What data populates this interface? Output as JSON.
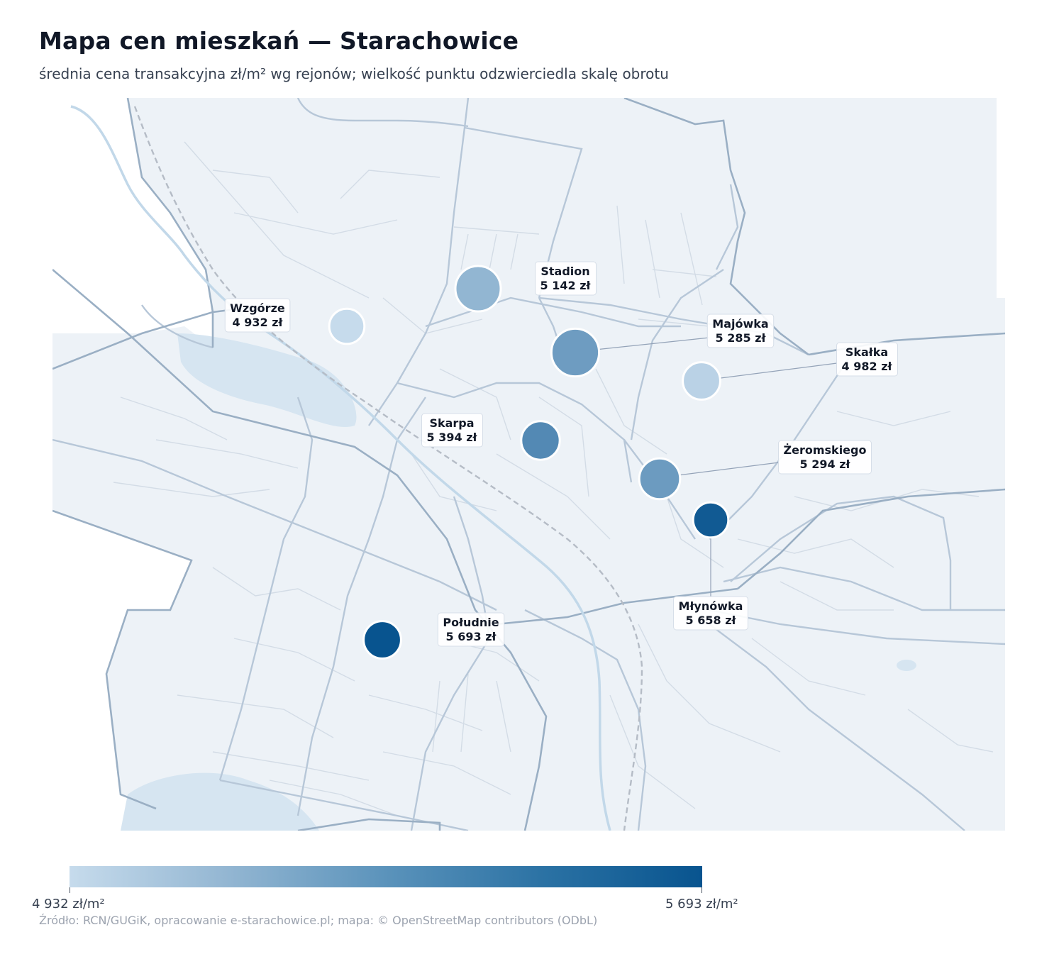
{
  "title": "Mapa cen mieszkań — Starachowice",
  "subtitle": "średnia cena transakcyjna zł/m² wg rejonów; wielkość punktu odzwierciedla skalę obrotu",
  "source": "Źródło: RCN/GUGiK, opracowanie e-starachowice.pl; mapa: © OpenStreetMap contributors (ODbL)",
  "legend": {
    "min_label": "4 932 zł/m²",
    "max_label": "5 693 zł/m²",
    "min_value": 4932,
    "max_value": 5693,
    "color_min": "#c6dbec",
    "color_max": "#08548f"
  },
  "colors": {
    "map_background": "#edf2f7",
    "water": "#d6e5f1",
    "river": "#c2d8e9",
    "road_major": "#9aafc4",
    "road_minor": "#d3dce6"
  },
  "districts": [
    {
      "name": "Wzgórze",
      "price_label": "4 932 zł",
      "price": 4932,
      "turnover": 0.3
    },
    {
      "name": "Stadion",
      "price_label": "5 142 zł",
      "price": 5142,
      "turnover": 0.75
    },
    {
      "name": "Majówka",
      "price_label": "5 285 zł",
      "price": 5285,
      "turnover": 0.85
    },
    {
      "name": "Skałka",
      "price_label": "4 982 zł",
      "price": 4982,
      "turnover": 0.4
    },
    {
      "name": "Skarpa",
      "price_label": "5 394 zł",
      "price": 5394,
      "turnover": 0.45
    },
    {
      "name": "Żeromskiego",
      "price_label": "5 294 zł",
      "price": 5294,
      "turnover": 0.55
    },
    {
      "name": "Młynówka",
      "price_label": "5 658 zł",
      "price": 5658,
      "turnover": 0.3
    },
    {
      "name": "Południe",
      "price_label": "5 693 zł",
      "price": 5693,
      "turnover": 0.4
    }
  ]
}
